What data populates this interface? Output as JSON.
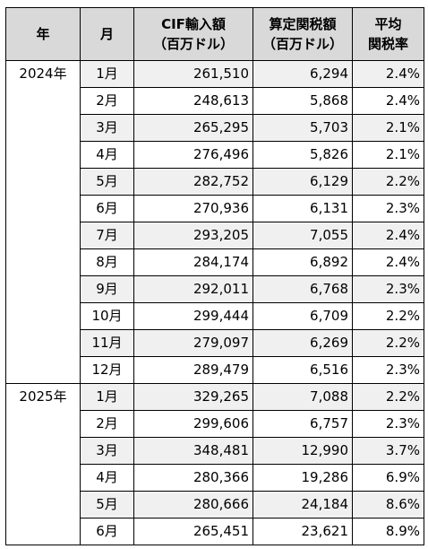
{
  "header": {
    "year": "年",
    "month": "月",
    "cif_line1": "CIF輸入額",
    "cif_line2": "（百万ドル）",
    "tax_line1": "算定関税額",
    "tax_line2": "（百万ドル）",
    "rate_line1": "平均",
    "rate_line2": "関税率"
  },
  "groups": [
    {
      "year": "2024年",
      "rows": [
        {
          "month": "1月",
          "cif": "261,510",
          "tax": "6,294",
          "rate": "2.4%"
        },
        {
          "month": "2月",
          "cif": "248,613",
          "tax": "5,868",
          "rate": "2.4%"
        },
        {
          "month": "3月",
          "cif": "265,295",
          "tax": "5,703",
          "rate": "2.1%"
        },
        {
          "month": "4月",
          "cif": "276,496",
          "tax": "5,826",
          "rate": "2.1%"
        },
        {
          "month": "5月",
          "cif": "282,752",
          "tax": "6,129",
          "rate": "2.2%"
        },
        {
          "month": "6月",
          "cif": "270,936",
          "tax": "6,131",
          "rate": "2.3%"
        },
        {
          "month": "7月",
          "cif": "293,205",
          "tax": "7,055",
          "rate": "2.4%"
        },
        {
          "month": "8月",
          "cif": "284,174",
          "tax": "6,892",
          "rate": "2.4%"
        },
        {
          "month": "9月",
          "cif": "292,011",
          "tax": "6,768",
          "rate": "2.3%"
        },
        {
          "month": "10月",
          "cif": "299,444",
          "tax": "6,709",
          "rate": "2.2%"
        },
        {
          "month": "11月",
          "cif": "279,097",
          "tax": "6,269",
          "rate": "2.2%"
        },
        {
          "month": "12月",
          "cif": "289,479",
          "tax": "6,516",
          "rate": "2.3%"
        }
      ]
    },
    {
      "year": "2025年",
      "rows": [
        {
          "month": "1月",
          "cif": "329,265",
          "tax": "7,088",
          "rate": "2.2%"
        },
        {
          "month": "2月",
          "cif": "299,606",
          "tax": "6,757",
          "rate": "2.3%"
        },
        {
          "month": "3月",
          "cif": "348,481",
          "tax": "12,990",
          "rate": "3.7%"
        },
        {
          "month": "4月",
          "cif": "280,366",
          "tax": "19,286",
          "rate": "6.9%"
        },
        {
          "month": "5月",
          "cif": "280,666",
          "tax": "24,184",
          "rate": "8.6%"
        },
        {
          "month": "6月",
          "cif": "265,451",
          "tax": "23,621",
          "rate": "8.9%"
        }
      ]
    }
  ]
}
